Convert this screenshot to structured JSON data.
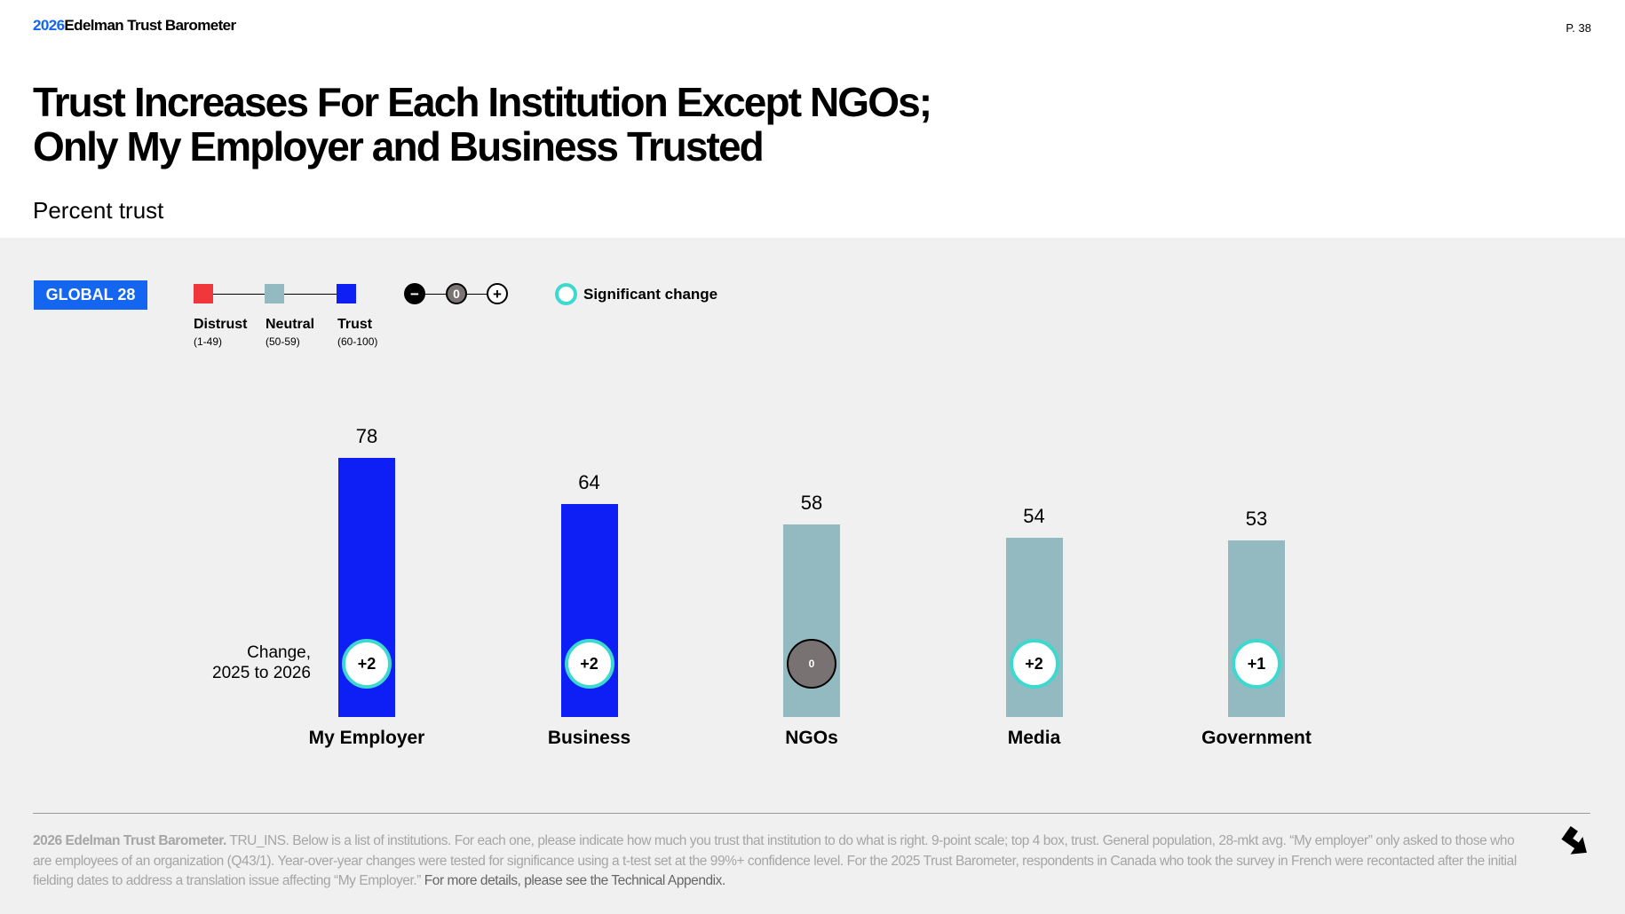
{
  "header": {
    "brand_year": "2026",
    "brand_name": "Edelman Trust Barometer",
    "page_number": "P. 38"
  },
  "title_line1": "Trust Increases For Each Institution Except NGOs;",
  "title_line2": "Only My Employer and Business Trusted",
  "subtitle": "Percent trust",
  "badge": "GLOBAL 28",
  "legend": {
    "scale": [
      {
        "label": "Distrust",
        "range": "(1-49)",
        "color": "#f0383c"
      },
      {
        "label": "Neutral",
        "range": "(50-59)",
        "color": "#93b9c1"
      },
      {
        "label": "Trust",
        "range": "(60-100)",
        "color": "#0d1ff5"
      }
    ],
    "change_symbols": [
      {
        "icon": "minus-icon",
        "glyph": "−"
      },
      {
        "icon": "zero-icon",
        "glyph": "0"
      },
      {
        "icon": "plus-icon",
        "glyph": "+"
      }
    ],
    "significant_label": "Significant change",
    "significant_color": "#3dd9cf"
  },
  "change_label_line1": "Change,",
  "change_label_line2": "2025 to 2026",
  "chart_data": {
    "type": "bar",
    "title": "Percent trust",
    "categories": [
      "My Employer",
      "Business",
      "NGOs",
      "Media",
      "Government"
    ],
    "values": [
      78,
      64,
      58,
      54,
      53
    ],
    "colors": [
      "#0d1ff5",
      "#0d1ff5",
      "#93b9c1",
      "#93b9c1",
      "#93b9c1"
    ],
    "change": [
      "+2",
      "+2",
      "0",
      "+2",
      "+1"
    ],
    "change_significant": [
      true,
      true,
      false,
      true,
      true
    ],
    "ylim": [
      0,
      100
    ]
  },
  "footnote": {
    "bold": "2026 Edelman Trust Barometer.",
    "body": " TRU_INS. Below is a list of institutions. For each one, please indicate how much you trust that institution to do what is right. 9-point scale; top 4 box, trust. General population, 28-mkt avg. “My employer” only asked to those who are employees of an organization (Q43/1). Year-over-year changes were tested for significance using a t-test set at the 99%+ confidence level. For the 2025 Trust Barometer, respondents in Canada who took the survey in French were recontacted after the initial fielding dates to address a translation issue affecting “My Employer.” ",
    "more": "For more details, please see the Technical Appendix."
  }
}
